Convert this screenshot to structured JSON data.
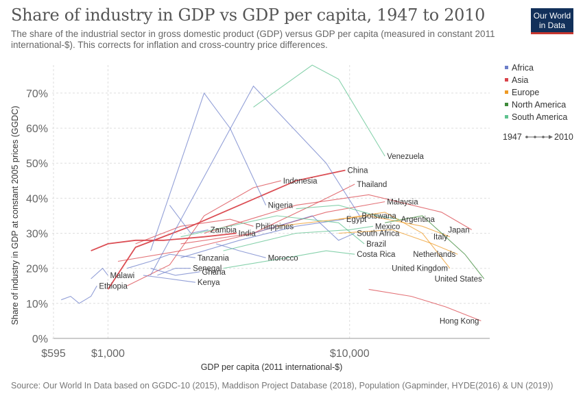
{
  "header": {
    "title": "Share of industry in GDP vs GDP per capita, 1947 to 2010",
    "subtitle": "The share of the industrial sector in gross domestic product (GDP) versus GDP per capita (measured in constant 2011 international-$). This corrects for inflation and cross-country price differences.",
    "logo_line1": "Our World",
    "logo_line2": "in Data"
  },
  "footer": {
    "source": "Source: Our World In Data based on GGDC-10 (2015), Maddison Project Database (2018), Population (Gapminder, HYDE(2016) & UN (2019))"
  },
  "colors": {
    "Africa": "#6d7fc9",
    "Asia": "#d9434a",
    "Europe": "#ee9a24",
    "North America": "#3e8a3a",
    "South America": "#5ec28f"
  },
  "chart_data": {
    "type": "scatter",
    "xlabel": "GDP per capita (2011 international-$)",
    "ylabel": "Share of industry in GDP at constant 2005 prices (GGDC)",
    "xscale": "log",
    "xlim": [
      595,
      38000
    ],
    "ylim": [
      0,
      78
    ],
    "xticks": [
      {
        "value": 595,
        "label": "$595"
      },
      {
        "value": 1000,
        "label": "$1,000"
      },
      {
        "value": 10000,
        "label": "$10,000"
      }
    ],
    "yticks": [
      {
        "value": 0,
        "label": "0%"
      },
      {
        "value": 10,
        "label": "10%"
      },
      {
        "value": 20,
        "label": "20%"
      },
      {
        "value": 30,
        "label": "30%"
      },
      {
        "value": 40,
        "label": "40%"
      },
      {
        "value": 50,
        "label": "50%"
      },
      {
        "value": 60,
        "label": "60%"
      },
      {
        "value": 70,
        "label": "70%"
      }
    ],
    "grid": true,
    "legend": {
      "position": "right",
      "entries": [
        "Africa",
        "Asia",
        "Europe",
        "North America",
        "South America"
      ],
      "timeline_start": "1947",
      "timeline_end": "2010"
    },
    "series": [
      {
        "name": "China",
        "region": "Asia",
        "bold": true,
        "points": [
          [
            1000,
            14
          ],
          [
            1300,
            26
          ],
          [
            2200,
            32
          ],
          [
            3500,
            38
          ],
          [
            6000,
            45
          ],
          [
            9600,
            48
          ]
        ]
      },
      {
        "name": "India",
        "region": "Asia",
        "bold": true,
        "points": [
          [
            850,
            25
          ],
          [
            1000,
            27
          ],
          [
            1300,
            28
          ],
          [
            1700,
            28
          ],
          [
            2500,
            29
          ],
          [
            3400,
            30
          ]
        ]
      },
      {
        "name": "Indonesia",
        "region": "Asia",
        "points": [
          [
            1200,
            15
          ],
          [
            1800,
            21
          ],
          [
            2500,
            35
          ],
          [
            4000,
            43
          ],
          [
            5200,
            45
          ]
        ]
      },
      {
        "name": "Thailand",
        "region": "Asia",
        "points": [
          [
            1100,
            22
          ],
          [
            2000,
            25
          ],
          [
            4000,
            30
          ],
          [
            7000,
            38
          ],
          [
            10500,
            44
          ]
        ]
      },
      {
        "name": "Malaysia",
        "region": "Asia",
        "points": [
          [
            2000,
            27
          ],
          [
            4000,
            30
          ],
          [
            8000,
            36
          ],
          [
            14000,
            39
          ]
        ]
      },
      {
        "name": "Philippines",
        "region": "Asia",
        "points": [
          [
            1300,
            27
          ],
          [
            2000,
            32
          ],
          [
            3200,
            34
          ],
          [
            4000,
            32
          ]
        ]
      },
      {
        "name": "Japan",
        "region": "Asia",
        "points": [
          [
            2500,
            30
          ],
          [
            6000,
            38
          ],
          [
            12000,
            41
          ],
          [
            24000,
            36
          ],
          [
            32000,
            31
          ]
        ]
      },
      {
        "name": "Hong Kong",
        "region": "Asia",
        "points": [
          [
            12000,
            14
          ],
          [
            18000,
            12
          ],
          [
            25000,
            9
          ],
          [
            35000,
            5
          ]
        ]
      },
      {
        "name": "Ethiopia",
        "region": "Africa",
        "points": [
          [
            640,
            11
          ],
          [
            700,
            12
          ],
          [
            760,
            10
          ],
          [
            850,
            12
          ],
          [
            900,
            15
          ]
        ]
      },
      {
        "name": "Malawi",
        "region": "Africa",
        "points": [
          [
            850,
            17
          ],
          [
            950,
            20
          ],
          [
            1000,
            18
          ]
        ]
      },
      {
        "name": "Tanzania",
        "region": "Africa",
        "points": [
          [
            1200,
            20
          ],
          [
            1500,
            22
          ],
          [
            1800,
            24
          ],
          [
            2300,
            23
          ]
        ]
      },
      {
        "name": "Senegal",
        "region": "Africa",
        "points": [
          [
            1600,
            18
          ],
          [
            1900,
            20
          ],
          [
            2200,
            20
          ]
        ]
      },
      {
        "name": "Ghana",
        "region": "Africa",
        "points": [
          [
            1500,
            20
          ],
          [
            1900,
            18
          ],
          [
            2400,
            19
          ]
        ]
      },
      {
        "name": "Kenya",
        "region": "Africa",
        "points": [
          [
            1400,
            18
          ],
          [
            1800,
            17
          ],
          [
            2300,
            16
          ]
        ]
      },
      {
        "name": "Zambia",
        "region": "Africa",
        "points": [
          [
            1800,
            38
          ],
          [
            2200,
            30
          ],
          [
            2600,
            31
          ]
        ]
      },
      {
        "name": "Nigeria",
        "region": "Africa",
        "points": [
          [
            1500,
            25
          ],
          [
            2500,
            70
          ],
          [
            3200,
            60
          ],
          [
            4500,
            38
          ]
        ]
      },
      {
        "name": "Egypt",
        "region": "Africa",
        "points": [
          [
            2000,
            23
          ],
          [
            3500,
            28
          ],
          [
            6000,
            32
          ],
          [
            9500,
            34
          ]
        ]
      },
      {
        "name": "Botswana",
        "region": "Africa",
        "points": [
          [
            1500,
            18
          ],
          [
            4000,
            72
          ],
          [
            8000,
            50
          ],
          [
            11000,
            35
          ]
        ]
      },
      {
        "name": "South Africa",
        "region": "Africa",
        "points": [
          [
            4000,
            30
          ],
          [
            7000,
            35
          ],
          [
            9000,
            28
          ],
          [
            10500,
            30
          ]
        ]
      },
      {
        "name": "Morocco",
        "region": "Africa",
        "points": [
          [
            2800,
            27
          ],
          [
            3500,
            25
          ],
          [
            4500,
            23
          ]
        ]
      },
      {
        "name": "Venezuela",
        "region": "South America",
        "points": [
          [
            4000,
            66
          ],
          [
            7000,
            78
          ],
          [
            9000,
            74
          ],
          [
            14000,
            52
          ]
        ]
      },
      {
        "name": "Argentina",
        "region": "South America",
        "points": [
          [
            6000,
            37
          ],
          [
            9000,
            38
          ],
          [
            13000,
            35
          ],
          [
            16000,
            34
          ]
        ]
      },
      {
        "name": "Mexico",
        "region": "South America",
        "points": [
          [
            3000,
            25
          ],
          [
            6000,
            30
          ],
          [
            10000,
            31
          ],
          [
            12500,
            32
          ]
        ]
      },
      {
        "name": "Brazil",
        "region": "South America",
        "points": [
          [
            2000,
            29
          ],
          [
            5000,
            35
          ],
          [
            9000,
            33
          ],
          [
            11500,
            27
          ]
        ]
      },
      {
        "name": "Costa Rica",
        "region": "South America",
        "points": [
          [
            3000,
            20
          ],
          [
            5500,
            23
          ],
          [
            8000,
            25
          ],
          [
            10500,
            24
          ]
        ]
      },
      {
        "name": "Italy",
        "region": "Europe",
        "points": [
          [
            5000,
            32
          ],
          [
            12000,
            35
          ],
          [
            20000,
            32
          ],
          [
            26000,
            29
          ]
        ]
      },
      {
        "name": "Netherlands",
        "region": "Europe",
        "points": [
          [
            9000,
            30
          ],
          [
            15000,
            31
          ],
          [
            22000,
            27
          ],
          [
            28000,
            24
          ]
        ]
      },
      {
        "name": "United Kingdom",
        "region": "Europe",
        "points": [
          [
            9000,
            34
          ],
          [
            14000,
            36
          ],
          [
            20000,
            30
          ],
          [
            26000,
            20
          ]
        ]
      },
      {
        "name": "United States",
        "region": "North America",
        "points": [
          [
            14000,
            33
          ],
          [
            20000,
            35
          ],
          [
            30000,
            24
          ],
          [
            36000,
            17
          ]
        ]
      }
    ]
  }
}
